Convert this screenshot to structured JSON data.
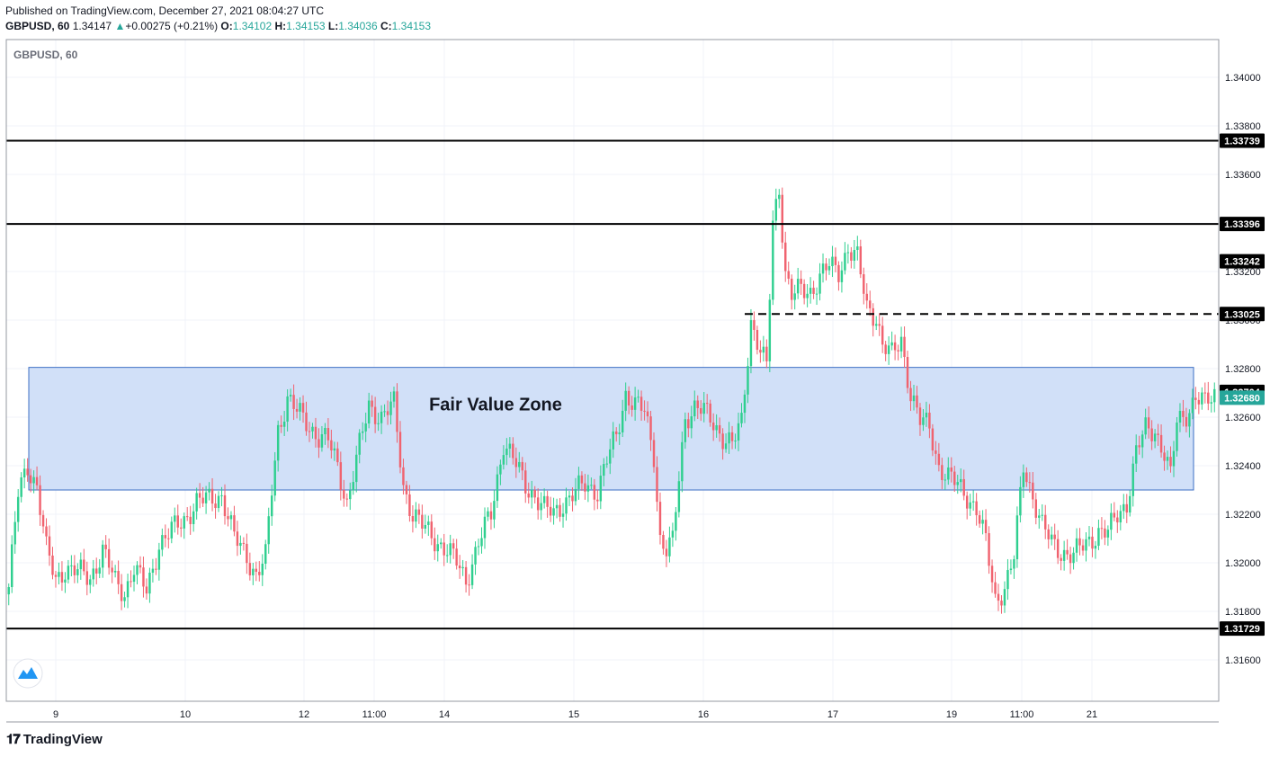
{
  "header": {
    "published": "Published on TradingView.com, December 27, 2021 08:04:27 UTC",
    "symbol": "GBPUSD, 60",
    "last": "1.34147",
    "change": "+0.00275 (+0.21%)",
    "o_label": "O:",
    "o": "1.34102",
    "h_label": "H:",
    "h": "1.34153",
    "l_label": "L:",
    "l": "1.34036",
    "c_label": "C:",
    "c": "1.34153"
  },
  "footer": {
    "brand": "TradingView",
    "logo_icon": "tradingview-logo-icon"
  },
  "colors": {
    "up": "#26a69a",
    "down": "#ef5350",
    "zone_fill": "#d1e0f8",
    "zone_border": "#3d6fc4",
    "line": "#000000",
    "up_candle": "#2fcf8f",
    "down_candle": "#f0636f"
  },
  "chart_data": {
    "type": "candlestick",
    "title": "GBPUSD, 60",
    "y_ticks": [
      "1.34000",
      "1.33800",
      "1.33600",
      "1.33400",
      "1.33200",
      "1.33000",
      "1.32800",
      "1.32600",
      "1.32400",
      "1.32200",
      "1.32000",
      "1.31800",
      "1.31600"
    ],
    "ylim": [
      1.3146,
      1.3418
    ],
    "x_ticks": [
      "9",
      "10",
      "12",
      "11:00",
      "14",
      "15",
      "16",
      "17",
      "19",
      "11:00",
      "21"
    ],
    "levels": [
      {
        "value": 1.33739,
        "label": "1.33739",
        "style": "solid"
      },
      {
        "value": 1.33396,
        "label": "1.33396",
        "style": "solid"
      },
      {
        "value": 1.33025,
        "label": "1.33025",
        "style": "dashed"
      },
      {
        "value": 1.31729,
        "label": "1.31729",
        "style": "solid"
      }
    ],
    "price_labels": [
      {
        "value": 1.33242,
        "label": "1.33242",
        "kind": "dark"
      },
      {
        "value": 1.32704,
        "label": "1.32704",
        "kind": "dark"
      },
      {
        "value": 1.3268,
        "label": "1.32680",
        "kind": "green"
      }
    ],
    "zone": {
      "label": "Fair Value Zone",
      "top": 1.32805,
      "bottom": 1.323
    },
    "grid": true,
    "anchors": [
      [
        0,
        1.319
      ],
      [
        3,
        1.3228
      ],
      [
        6,
        1.324
      ],
      [
        9,
        1.3232
      ],
      [
        12,
        1.3205
      ],
      [
        15,
        1.3193
      ],
      [
        18,
        1.3198
      ],
      [
        22,
        1.3196
      ],
      [
        26,
        1.3194
      ],
      [
        30,
        1.3205
      ],
      [
        34,
        1.3192
      ],
      [
        37,
        1.3188
      ],
      [
        40,
        1.3198
      ],
      [
        44,
        1.3188
      ],
      [
        48,
        1.3208
      ],
      [
        52,
        1.3213
      ],
      [
        56,
        1.3218
      ],
      [
        60,
        1.3225
      ],
      [
        64,
        1.3226
      ],
      [
        68,
        1.3228
      ],
      [
        72,
        1.321
      ],
      [
        76,
        1.3203
      ],
      [
        79,
        1.3195
      ],
      [
        82,
        1.3202
      ],
      [
        84,
        1.323
      ],
      [
        86,
        1.3255
      ],
      [
        89,
        1.3268
      ],
      [
        92,
        1.3262
      ],
      [
        95,
        1.3258
      ],
      [
        99,
        1.3252
      ],
      [
        102,
        1.325
      ],
      [
        105,
        1.324
      ],
      [
        108,
        1.3225
      ],
      [
        111,
        1.3242
      ],
      [
        115,
        1.3265
      ],
      [
        119,
        1.326
      ],
      [
        123,
        1.3265
      ],
      [
        126,
        1.3232
      ],
      [
        129,
        1.322
      ],
      [
        132,
        1.3215
      ],
      [
        136,
        1.321
      ],
      [
        140,
        1.3205
      ],
      [
        143,
        1.32
      ],
      [
        146,
        1.3193
      ],
      [
        150,
        1.3208
      ],
      [
        154,
        1.322
      ],
      [
        158,
        1.325
      ],
      [
        162,
        1.324
      ],
      [
        165,
        1.3232
      ],
      [
        168,
        1.3228
      ],
      [
        171,
        1.3222
      ],
      [
        174,
        1.322
      ],
      [
        177,
        1.3225
      ],
      [
        180,
        1.3228
      ],
      [
        184,
        1.3232
      ],
      [
        188,
        1.323
      ],
      [
        191,
        1.3242
      ],
      [
        194,
        1.3252
      ],
      [
        197,
        1.327
      ],
      [
        200,
        1.3265
      ],
      [
        203,
        1.3262
      ],
      [
        206,
        1.3245
      ],
      [
        208,
        1.321
      ],
      [
        210,
        1.3205
      ],
      [
        212,
        1.3208
      ],
      [
        214,
        1.3235
      ],
      [
        216,
        1.326
      ],
      [
        219,
        1.3264
      ],
      [
        222,
        1.3262
      ],
      [
        225,
        1.3258
      ],
      [
        228,
        1.3252
      ],
      [
        231,
        1.3248
      ],
      [
        234,
        1.3258
      ],
      [
        237,
        1.33
      ],
      [
        240,
        1.3287
      ],
      [
        242,
        1.328
      ],
      [
        244,
        1.334
      ],
      [
        246,
        1.3355
      ],
      [
        248,
        1.332
      ],
      [
        250,
        1.331
      ],
      [
        253,
        1.3312
      ],
      [
        256,
        1.3312
      ],
      [
        259,
        1.3318
      ],
      [
        262,
        1.3322
      ],
      [
        265,
        1.332
      ],
      [
        268,
        1.333
      ],
      [
        271,
        1.3325
      ],
      [
        274,
        1.3305
      ],
      [
        277,
        1.3302
      ],
      [
        279,
        1.329
      ],
      [
        282,
        1.3285
      ],
      [
        285,
        1.3292
      ],
      [
        288,
        1.327
      ],
      [
        291,
        1.3258
      ],
      [
        294,
        1.3256
      ],
      [
        297,
        1.324
      ],
      [
        300,
        1.3235
      ],
      [
        303,
        1.3232
      ],
      [
        306,
        1.3228
      ],
      [
        309,
        1.3222
      ],
      [
        312,
        1.3208
      ],
      [
        315,
        1.3185
      ],
      [
        318,
        1.319
      ],
      [
        321,
        1.3202
      ],
      [
        324,
        1.324
      ],
      [
        327,
        1.3228
      ],
      [
        330,
        1.3215
      ],
      [
        333,
        1.3208
      ],
      [
        336,
        1.3205
      ],
      [
        340,
        1.3203
      ],
      [
        344,
        1.3208
      ],
      [
        348,
        1.3213
      ],
      [
        351,
        1.3212
      ],
      [
        354,
        1.322
      ],
      [
        357,
        1.3225
      ],
      [
        360,
        1.3245
      ],
      [
        363,
        1.3255
      ],
      [
        366,
        1.3255
      ],
      [
        369,
        1.3245
      ],
      [
        371,
        1.3235
      ],
      [
        373,
        1.3258
      ],
      [
        376,
        1.3262
      ],
      [
        379,
        1.3268
      ],
      [
        382,
        1.3265
      ],
      [
        385,
        1.327
      ]
    ]
  }
}
